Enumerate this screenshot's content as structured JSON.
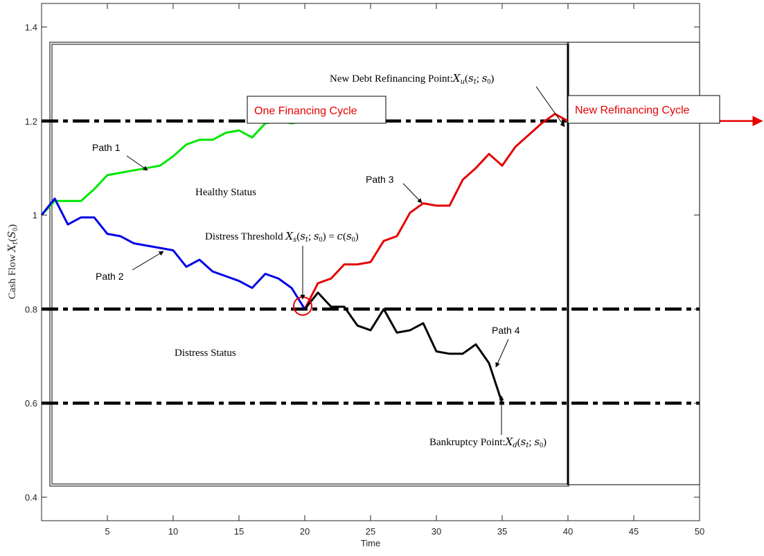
{
  "chart_data": {
    "type": "line",
    "xlabel": "Time",
    "ylabel": "Cash Flow X_t(S_0)",
    "xlim": [
      0,
      50
    ],
    "ylim": [
      0.35,
      1.45
    ],
    "xticks": [
      5,
      10,
      15,
      20,
      25,
      30,
      35,
      40,
      45,
      50
    ],
    "yticks": [
      0.4,
      0.6,
      0.8,
      1.0,
      1.2,
      1.4
    ],
    "ytick_labels": [
      "0.4",
      "0.6",
      "0.8",
      "1",
      "1.2",
      "1.4"
    ],
    "grid": false,
    "thresholds": [
      {
        "y": 1.2,
        "style": "dash-dot",
        "color": "#000000"
      },
      {
        "y": 0.8,
        "style": "dash-dot",
        "color": "#000000"
      },
      {
        "y": 0.6,
        "style": "dash-dot",
        "color": "#000000"
      }
    ],
    "series": [
      {
        "label": "Path 1",
        "color": "#00e600",
        "x": [
          0,
          1,
          2,
          3,
          4,
          5,
          6,
          7,
          8,
          9,
          10,
          11,
          12,
          13,
          14,
          15,
          16,
          17,
          18,
          19,
          20
        ],
        "y": [
          1.0,
          1.03,
          1.03,
          1.03,
          1.055,
          1.085,
          1.09,
          1.095,
          1.1,
          1.105,
          1.125,
          1.15,
          1.16,
          1.16,
          1.175,
          1.18,
          1.165,
          1.195,
          1.2,
          1.195,
          1.2
        ]
      },
      {
        "label": "Path 2",
        "color": "#0000e6",
        "x": [
          0,
          1,
          2,
          3,
          4,
          5,
          6,
          7,
          8,
          9,
          10,
          11,
          12,
          13,
          14,
          15,
          16,
          17,
          18,
          19,
          20
        ],
        "y": [
          1.0,
          1.035,
          0.98,
          0.995,
          0.995,
          0.96,
          0.955,
          0.94,
          0.935,
          0.93,
          0.925,
          0.89,
          0.905,
          0.88,
          0.87,
          0.86,
          0.845,
          0.875,
          0.865,
          0.845,
          0.8
        ]
      },
      {
        "label": "Path 3",
        "color": "#e60000",
        "x": [
          20,
          21,
          22,
          23,
          24,
          25,
          26,
          27,
          28,
          29,
          30,
          31,
          32,
          33,
          34,
          35,
          36,
          37,
          38,
          39,
          40
        ],
        "y": [
          0.8,
          0.855,
          0.865,
          0.895,
          0.895,
          0.9,
          0.945,
          0.955,
          1.005,
          1.025,
          1.02,
          1.02,
          1.075,
          1.1,
          1.13,
          1.105,
          1.145,
          1.17,
          1.195,
          1.215,
          1.2
        ]
      },
      {
        "label": "Path 4",
        "color": "#000000",
        "x": [
          20,
          21,
          22,
          23,
          24,
          25,
          26,
          27,
          28,
          29,
          30,
          31,
          32,
          33,
          34,
          35
        ],
        "y": [
          0.8,
          0.835,
          0.805,
          0.805,
          0.765,
          0.755,
          0.8,
          0.75,
          0.755,
          0.77,
          0.71,
          0.705,
          0.705,
          0.725,
          0.685,
          0.6
        ]
      }
    ],
    "extension_arrow": {
      "x_start": 40,
      "y": 1.2,
      "color": "#e60000"
    },
    "boxes": [
      {
        "label": "One Financing Cycle",
        "color": "#e60000"
      },
      {
        "label": "New Refinancing Cycle",
        "color": "#e60000"
      }
    ],
    "annotations": {
      "path1": "Path 1",
      "path2": "Path 2",
      "path3": "Path 3",
      "path4": "Path 4",
      "healthy": "Healthy Status",
      "distress_status": "Distress Status",
      "distress_threshold": "Distress Threshold",
      "distress_formula": "X_s(s_t; s_0) = c(s_0)",
      "refinancing_point": "New Debt Refinancing Point:",
      "refinancing_formula": "X_u(s_t; s_0)",
      "bankruptcy_point": "Bankruptcy Point:",
      "bankruptcy_formula": "X_d(s_t; s_0)"
    }
  }
}
